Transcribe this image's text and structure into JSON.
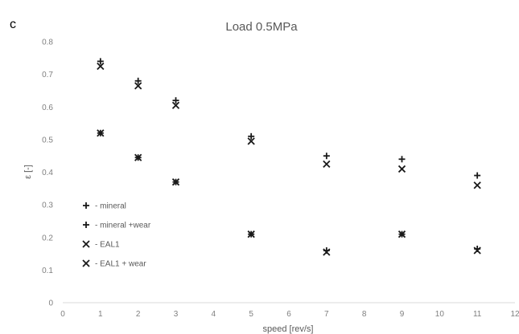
{
  "panel_label": "c",
  "chart_data": {
    "type": "scatter",
    "title": "Load 0.5MPa",
    "xlabel": "speed [rev/s]",
    "ylabel": "ε [-]",
    "xlim": [
      0,
      12
    ],
    "ylim": [
      0,
      0.8
    ],
    "x_ticks": [
      "0",
      "1",
      "2",
      "3",
      "4",
      "5",
      "6",
      "7",
      "8",
      "9",
      "10",
      "11",
      "12"
    ],
    "y_ticks": [
      "0",
      "0.1",
      "0.2",
      "0.3",
      "0.4",
      "0.5",
      "0.6",
      "0.7",
      "0.8"
    ],
    "grid": false,
    "legend_position": "left",
    "series": [
      {
        "name": "- mineral",
        "marker": "plus",
        "x": [
          1,
          2,
          3,
          5,
          7,
          9,
          11
        ],
        "y": [
          0.74,
          0.68,
          0.62,
          0.51,
          0.45,
          0.44,
          0.39
        ]
      },
      {
        "name": "- mineral +wear",
        "marker": "plus",
        "x": [
          1,
          2,
          3,
          5,
          7,
          9,
          11
        ],
        "y": [
          0.52,
          0.445,
          0.37,
          0.21,
          0.16,
          0.21,
          0.165
        ]
      },
      {
        "name": "- EAL1",
        "marker": "cross",
        "x": [
          1,
          2,
          3,
          5,
          7,
          9,
          11
        ],
        "y": [
          0.725,
          0.665,
          0.605,
          0.495,
          0.425,
          0.41,
          0.36
        ]
      },
      {
        "name": "- EAL1 + wear",
        "marker": "cross",
        "x": [
          1,
          2,
          3,
          5,
          7,
          9,
          11
        ],
        "y": [
          0.52,
          0.445,
          0.37,
          0.21,
          0.155,
          0.21,
          0.16
        ]
      }
    ]
  }
}
